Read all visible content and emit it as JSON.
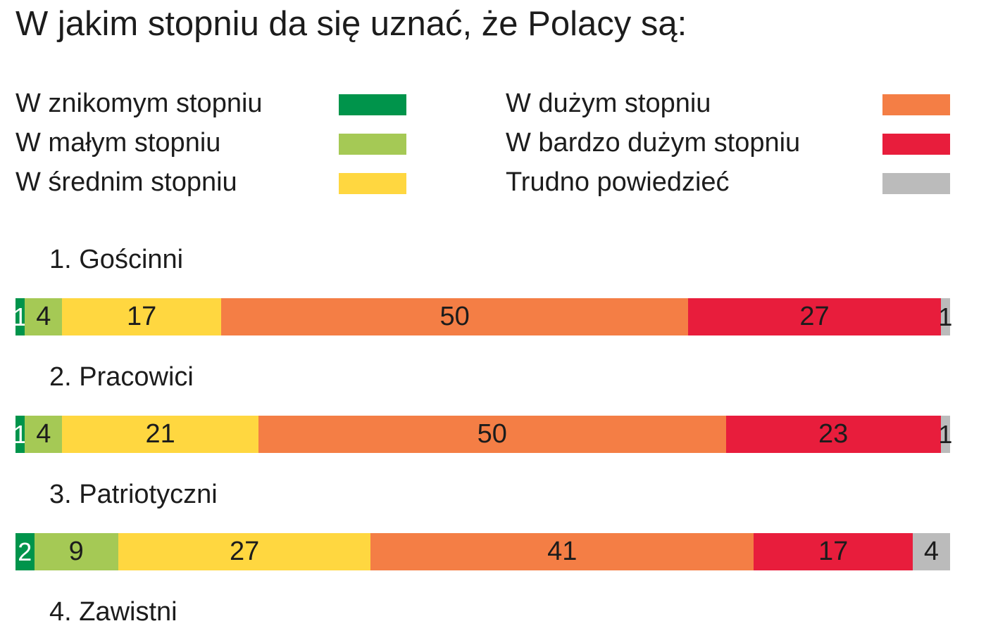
{
  "chart_data": {
    "type": "bar",
    "orientation": "horizontal",
    "stacked": true,
    "title": "W jakim stopniu da się uznać, że Polacy są:",
    "legend": [
      {
        "label": "W znikomym stopniu",
        "color": "#00944b"
      },
      {
        "label": "W małym stopniu",
        "color": "#a5c955"
      },
      {
        "label": "W średnim stopniu",
        "color": "#ffd740"
      },
      {
        "label": "W dużym stopniu",
        "color": "#f47e45"
      },
      {
        "label": "W bardzo dużym stopniu",
        "color": "#e81d3c"
      },
      {
        "label": "Trudno powiedzieć",
        "color": "#bbbbbb"
      }
    ],
    "rows": [
      {
        "label": "1. Gościnni",
        "values": [
          1,
          4,
          17,
          50,
          27,
          1
        ],
        "labels": [
          "1",
          "4",
          "17",
          "50",
          "27",
          "1"
        ]
      },
      {
        "label": "2. Pracowici",
        "values": [
          1,
          4,
          21,
          50,
          23,
          1
        ],
        "labels": [
          "1",
          "4",
          "21",
          "50",
          "23",
          "1"
        ]
      },
      {
        "label": "3. Patriotyczni",
        "values": [
          2,
          9,
          27,
          41,
          17,
          4
        ],
        "labels": [
          "2",
          "9",
          "27",
          "41",
          "17",
          "4"
        ]
      },
      {
        "label": "4. Zawistni",
        "values": [],
        "labels": []
      }
    ],
    "xlim": [
      0,
      100
    ],
    "unit": "%"
  }
}
